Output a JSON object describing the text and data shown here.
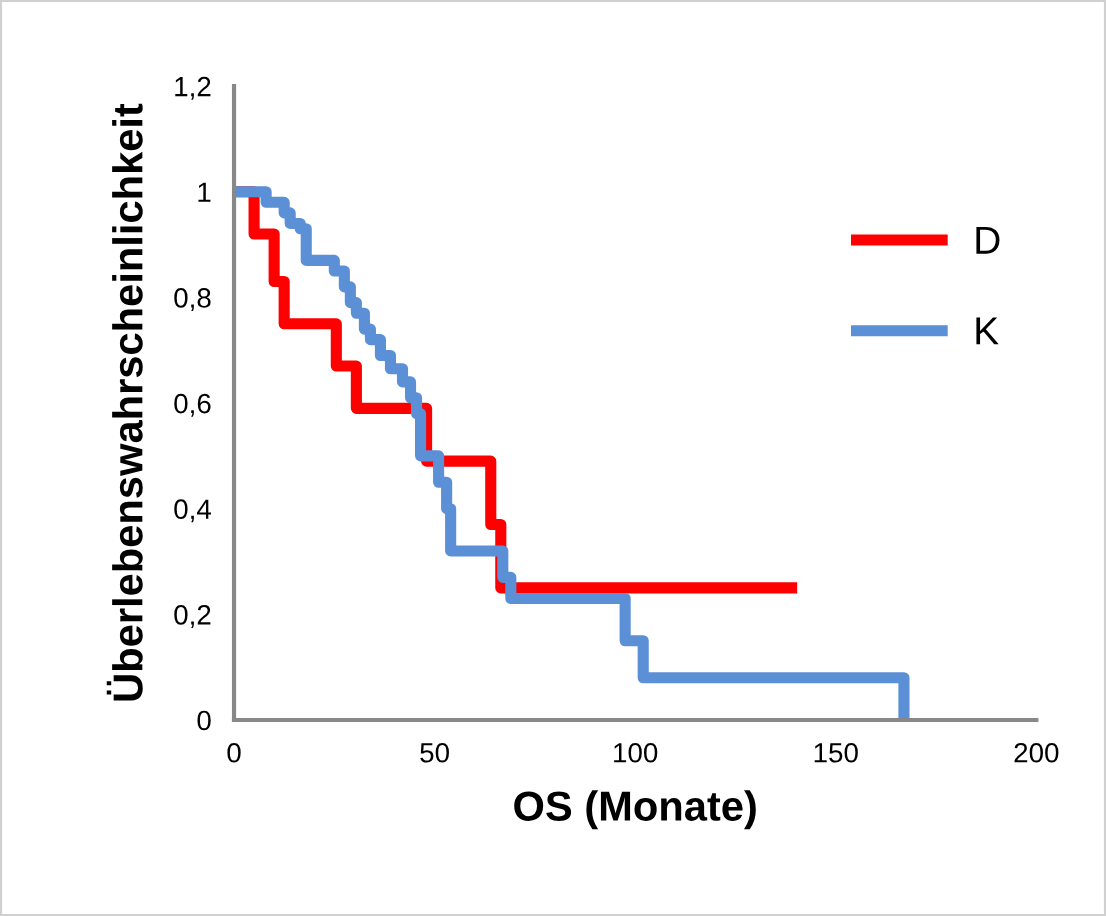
{
  "chart_data": {
    "type": "step",
    "xlabel": "OS (Monate)",
    "ylabel": "Überlebenswahrscheinlichkeit",
    "xlim": [
      0,
      200
    ],
    "xticks": [
      0,
      50,
      100,
      150,
      200
    ],
    "ylim": [
      0,
      1.2
    ],
    "yticks": [
      0,
      {
        "value": 0.2,
        "label": "0,2"
      },
      {
        "value": 0.4,
        "label": "0,4"
      },
      {
        "value": 0.6,
        "label": "0,6"
      },
      {
        "value": 0.8,
        "label": "0,8"
      },
      1,
      {
        "value": 1.2,
        "label": "1,2"
      }
    ],
    "grid": false,
    "legend": "right",
    "series": [
      {
        "name": "D",
        "color": "#ff0000",
        "x": [
          0,
          5,
          10,
          12.5,
          25.5,
          30.5,
          48,
          64,
          66.5,
          139
        ],
        "values": [
          1,
          0.92,
          0.83,
          0.75,
          0.67,
          0.59,
          0.49,
          0.37,
          0.25,
          0.25
        ]
      },
      {
        "name": "K",
        "color": "#5b8fd6",
        "x": [
          0,
          8,
          12.5,
          14,
          16.5,
          18,
          25,
          27.5,
          29,
          30.5,
          32.5,
          34,
          36.5,
          39,
          42,
          44,
          45.5,
          46.5,
          51,
          53,
          54,
          67,
          69,
          97.5,
          102,
          167
        ],
        "values": [
          1,
          0.98,
          0.96,
          0.94,
          0.93,
          0.87,
          0.85,
          0.82,
          0.79,
          0.77,
          0.74,
          0.72,
          0.69,
          0.665,
          0.64,
          0.61,
          0.58,
          0.5,
          0.45,
          0.4,
          0.32,
          0.27,
          0.23,
          0.15,
          0.08,
          0
        ]
      }
    ]
  }
}
